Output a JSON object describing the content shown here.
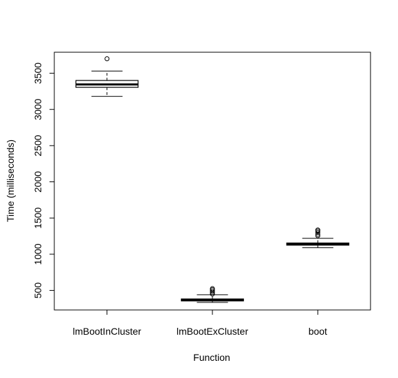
{
  "chart_data": {
    "type": "box",
    "title": "",
    "xlabel": "Function",
    "ylabel": "Time (milliseconds)",
    "ylim": [
      230,
      3790
    ],
    "yticks": [
      500,
      1000,
      1500,
      2000,
      2500,
      3000,
      3500
    ],
    "categories": [
      "lmBootInCluster",
      "lmBootExCluster",
      "boot"
    ],
    "boxes": [
      {
        "name": "lmBootInCluster",
        "whisker_low": 3180,
        "q1": 3305,
        "median": 3345,
        "q3": 3400,
        "whisker_high": 3530,
        "outliers": [
          3700
        ]
      },
      {
        "name": "lmBootExCluster",
        "whisker_low": 335,
        "q1": 355,
        "median": 365,
        "q3": 382,
        "whisker_high": 440,
        "outliers": [
          450,
          470,
          490,
          510,
          525
        ]
      },
      {
        "name": "boot",
        "whisker_low": 1090,
        "q1": 1125,
        "median": 1140,
        "q3": 1155,
        "whisker_high": 1220,
        "outliers": [
          1255,
          1275,
          1300,
          1320,
          1335
        ]
      }
    ],
    "grid": false,
    "legend": "none"
  }
}
